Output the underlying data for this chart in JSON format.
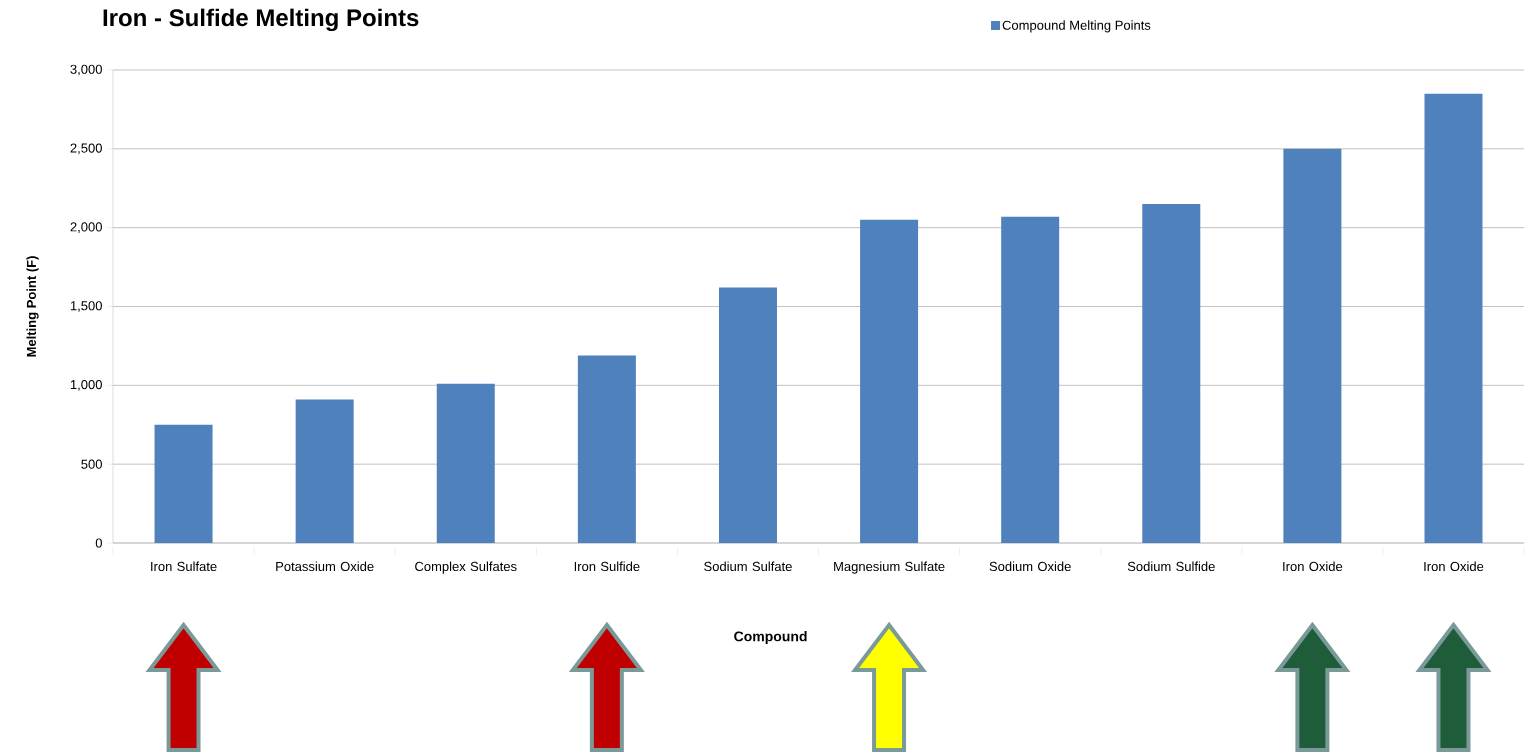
{
  "chart_data": {
    "type": "bar",
    "title": "Iron - Sulfide Melting Points",
    "xlabel": "Compound",
    "ylabel": "Melting Point (F)",
    "categories": [
      "Iron Sulfate",
      "Potassium Oxide",
      "Complex Sulfates",
      "Iron Sulfide",
      "Sodium Sulfate",
      "Magnesium Sulfate",
      "Sodium Oxide",
      "Sodium Sulfide",
      "Iron Oxide",
      "Iron Oxide"
    ],
    "series": [
      {
        "name": "Compound Melting Points",
        "color": "#4f81bd",
        "values": [
          750,
          910,
          1010,
          1190,
          1620,
          2050,
          2070,
          2150,
          2500,
          2850
        ]
      }
    ],
    "ylim": [
      0,
      3000
    ],
    "yticks": [
      {
        "value": 0,
        "label": "0"
      },
      {
        "value": 500,
        "label": "500"
      },
      {
        "value": 1000,
        "label": "1,000"
      },
      {
        "value": 1500,
        "label": "1,500"
      },
      {
        "value": 2000,
        "label": "2,000"
      },
      {
        "value": 2500,
        "label": "2,500"
      },
      {
        "value": 3000,
        "label": "3,000"
      }
    ],
    "grid": "y",
    "legend": "top right"
  }
}
